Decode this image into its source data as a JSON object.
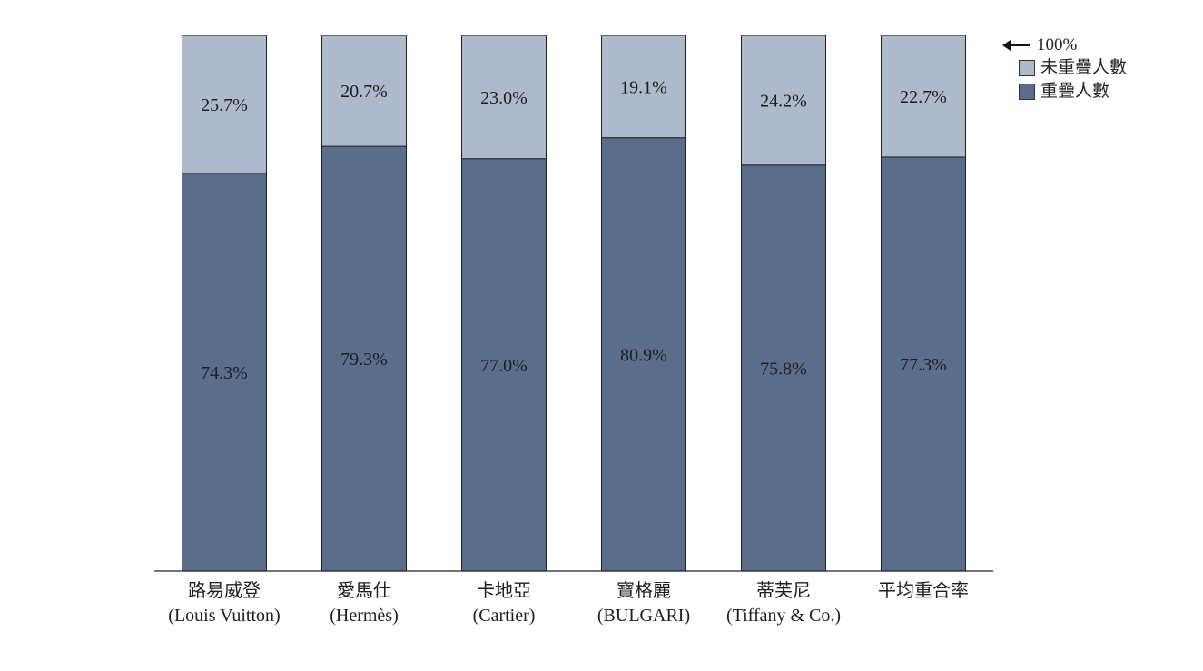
{
  "chart_data": {
    "type": "bar",
    "stacked": true,
    "categories": [
      "路易威登 (Louis Vuitton)",
      "愛馬仕 (Hermès)",
      "卡地亞 (Cartier)",
      "寶格麗 (BULGARI)",
      "蒂芙尼 (Tiffany & Co.)",
      "平均重合率"
    ],
    "category_lines": [
      [
        "路易威登",
        "(Louis Vuitton)"
      ],
      [
        "愛馬仕",
        "(Hermès)"
      ],
      [
        "卡地亞",
        "(Cartier)"
      ],
      [
        "寶格麗",
        "(BULGARI)"
      ],
      [
        "蒂芙尼",
        "(Tiffany & Co.)"
      ],
      [
        "平均重合率",
        ""
      ]
    ],
    "series": [
      {
        "name": "重疊人數",
        "values": [
          74.3,
          79.3,
          77.0,
          80.9,
          75.8,
          77.3
        ],
        "labels": [
          "74.3%",
          "79.3%",
          "77.0%",
          "80.9%",
          "75.8%",
          "77.3%"
        ],
        "color": "#5a6e8c"
      },
      {
        "name": "未重疊人數",
        "values": [
          25.7,
          20.7,
          23.0,
          19.1,
          24.2,
          22.7
        ],
        "labels": [
          "25.7%",
          "20.7%",
          "23.0%",
          "19.1%",
          "24.2%",
          "22.7%"
        ],
        "color": "#aeb9cb"
      }
    ],
    "ylim": [
      0,
      100
    ],
    "legend_placement": "top-right",
    "grid": false
  },
  "legend": {
    "marker_label": "100%",
    "items": [
      {
        "label": "未重疊人數",
        "color": "#aeb9cb"
      },
      {
        "label": "重疊人數",
        "color": "#5a6e8c"
      }
    ]
  }
}
